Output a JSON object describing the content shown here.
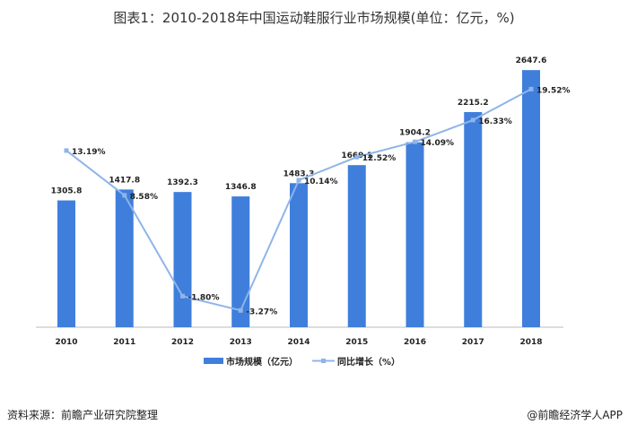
{
  "chart_data": {
    "type": "bar",
    "title": "图表1：2010-2018年中国运动鞋服行业市场规模(单位：亿元，%)",
    "categories": [
      "2010",
      "2011",
      "2012",
      "2013",
      "2014",
      "2015",
      "2016",
      "2017",
      "2018"
    ],
    "series": [
      {
        "name": "市场规模（亿元）",
        "type": "bar",
        "color": "#3f7fdb",
        "axis": "left",
        "values": [
          1305.8,
          1417.8,
          1392.3,
          1346.8,
          1483.3,
          1669.1,
          1904.2,
          2215.2,
          2647.6
        ],
        "labels": [
          "1305.8",
          "1417.8",
          "1392.3",
          "1346.8",
          "1483.3",
          "1669.1",
          "1904.2",
          "2215.2",
          "2647.6"
        ]
      },
      {
        "name": "同比增长（%）",
        "type": "line",
        "color": "#8fb4ea",
        "axis": "right",
        "values": [
          13.19,
          8.58,
          -1.8,
          -3.27,
          10.14,
          12.52,
          14.09,
          16.33,
          19.52
        ],
        "labels": [
          "13.19%",
          "8.58%",
          "-1.80%",
          "-3.27%",
          "10.14%",
          "12.52%",
          "14.09%",
          "16.33%",
          "19.52%"
        ]
      }
    ],
    "ylim_left": [
      0,
      3000
    ],
    "ylim_right": [
      -5,
      25
    ],
    "grid": false,
    "legend": "bottom"
  },
  "footer": {
    "source": "资料来源：前瞻产业研究院整理",
    "brand": "@前瞻经济学人APP"
  }
}
